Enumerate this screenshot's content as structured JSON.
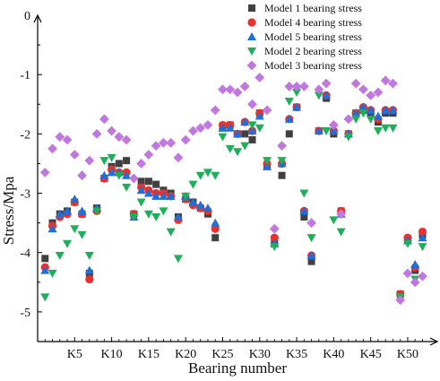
{
  "chart_data": {
    "type": "scatter",
    "xlabel": "Bearing number",
    "ylabel": "Stress/Mpa",
    "xlim": [
      0,
      54
    ],
    "ylim": [
      -5.5,
      0
    ],
    "x_ticks": [
      {
        "x": 5,
        "label": "K5"
      },
      {
        "x": 10,
        "label": "K10"
      },
      {
        "x": 15,
        "label": "K15"
      },
      {
        "x": 20,
        "label": "K20"
      },
      {
        "x": 25,
        "label": "K25"
      },
      {
        "x": 30,
        "label": "K30"
      },
      {
        "x": 35,
        "label": "K35"
      },
      {
        "x": 40,
        "label": "K40"
      },
      {
        "x": 45,
        "label": "K45"
      },
      {
        "x": 50,
        "label": "K50"
      }
    ],
    "y_ticks": [
      {
        "y": 0,
        "label": "0"
      },
      {
        "y": -1,
        "label": "-1"
      },
      {
        "y": -2,
        "label": "-2"
      },
      {
        "y": -3,
        "label": "-3"
      },
      {
        "y": -4,
        "label": "-4"
      },
      {
        "y": -5,
        "label": "-5"
      }
    ],
    "legend_position": "top-right",
    "series": [
      {
        "name": "Model 1 bearing stress",
        "marker": "square",
        "color": "#404040",
        "x": [
          1,
          2,
          3,
          4,
          5,
          6,
          7,
          8,
          9,
          10,
          11,
          12,
          13,
          14,
          15,
          16,
          17,
          18,
          19,
          20,
          21,
          22,
          23,
          24,
          25,
          26,
          27,
          28,
          29,
          30,
          31,
          32,
          33,
          34,
          35,
          36,
          37,
          38,
          39,
          40,
          41,
          42,
          43,
          44,
          45,
          46,
          47,
          48,
          49,
          50,
          51,
          52
        ],
        "y": [
          -4.1,
          -3.5,
          -3.35,
          -3.3,
          -3.15,
          -3.35,
          -4.35,
          -3.25,
          -2.75,
          -2.55,
          -2.5,
          -2.45,
          -3.35,
          -2.8,
          -2.8,
          -2.85,
          -2.95,
          -3.0,
          -3.4,
          -3.1,
          -3.15,
          -3.25,
          -3.35,
          -3.75,
          -1.9,
          -1.85,
          -2.0,
          -2.0,
          -2.1,
          -1.65,
          -2.55,
          -3.85,
          -2.7,
          -2.0,
          -1.55,
          -3.4,
          -4.15,
          -1.95,
          -1.4,
          -2.0,
          -3.3,
          -2.0,
          -1.65,
          -1.6,
          -1.65,
          -1.8,
          -1.65,
          -1.65,
          -4.7,
          -3.8,
          -4.3,
          -3.7
        ]
      },
      {
        "name": "Model 4 bearing stress",
        "marker": "circle",
        "color": "#e8312c",
        "x": [
          1,
          2,
          3,
          4,
          5,
          6,
          7,
          8,
          9,
          10,
          11,
          12,
          13,
          14,
          15,
          16,
          17,
          18,
          19,
          20,
          21,
          22,
          23,
          24,
          25,
          26,
          27,
          28,
          29,
          30,
          31,
          32,
          33,
          34,
          35,
          36,
          37,
          38,
          39,
          40,
          41,
          42,
          43,
          44,
          45,
          46,
          47,
          48,
          49,
          50,
          51,
          52
        ],
        "y": [
          -4.25,
          -3.55,
          -3.4,
          -3.35,
          -3.15,
          -3.35,
          -4.45,
          -3.3,
          -2.75,
          -2.6,
          -2.65,
          -2.65,
          -3.35,
          -2.9,
          -2.95,
          -3.0,
          -3.0,
          -3.05,
          -3.45,
          -3.1,
          -3.2,
          -3.25,
          -3.3,
          -3.6,
          -1.85,
          -1.85,
          -2.0,
          -1.8,
          -1.95,
          -1.65,
          -2.5,
          -3.75,
          -2.5,
          -1.75,
          -1.55,
          -3.3,
          -4.05,
          -1.95,
          -1.35,
          -1.95,
          -3.3,
          -2.0,
          -1.65,
          -1.55,
          -1.6,
          -1.75,
          -1.6,
          -1.6,
          -4.7,
          -3.75,
          -4.25,
          -3.65
        ]
      },
      {
        "name": "Model 5 bearing stress",
        "marker": "triangle-up",
        "color": "#1f6fd8",
        "x": [
          1,
          2,
          3,
          4,
          5,
          6,
          7,
          8,
          9,
          10,
          11,
          12,
          13,
          14,
          15,
          16,
          17,
          18,
          19,
          20,
          21,
          22,
          23,
          24,
          25,
          26,
          27,
          28,
          29,
          30,
          31,
          32,
          33,
          34,
          35,
          36,
          37,
          38,
          39,
          40,
          41,
          42,
          43,
          44,
          45,
          46,
          47,
          48,
          49,
          50,
          51,
          52
        ],
        "y": [
          -4.3,
          -3.6,
          -3.35,
          -3.3,
          -3.1,
          -3.3,
          -4.3,
          -3.25,
          -2.7,
          -2.65,
          -2.65,
          -2.7,
          -3.4,
          -2.95,
          -3.0,
          -3.05,
          -3.05,
          -3.05,
          -3.4,
          -3.05,
          -3.15,
          -3.2,
          -3.25,
          -3.5,
          -1.9,
          -1.9,
          -2.0,
          -1.8,
          -1.95,
          -1.7,
          -2.55,
          -3.85,
          -2.5,
          -1.75,
          -1.55,
          -3.3,
          -4.05,
          -1.95,
          -1.35,
          -1.95,
          -3.35,
          -2.0,
          -1.65,
          -1.55,
          -1.6,
          -1.7,
          -1.6,
          -1.6,
          -4.75,
          -3.8,
          -4.2,
          -3.75
        ]
      },
      {
        "name": "Model 2 bearing stress",
        "marker": "triangle-down",
        "color": "#1fae5a",
        "x": [
          1,
          2,
          3,
          4,
          5,
          6,
          7,
          8,
          9,
          10,
          11,
          12,
          13,
          14,
          15,
          16,
          17,
          18,
          19,
          20,
          21,
          22,
          23,
          24,
          25,
          26,
          27,
          28,
          29,
          30,
          31,
          32,
          33,
          34,
          35,
          36,
          37,
          38,
          39,
          40,
          41,
          42,
          43,
          44,
          45,
          46,
          47,
          48,
          49,
          50,
          51,
          52
        ],
        "y": [
          -4.75,
          -4.35,
          -4.05,
          -3.85,
          -3.6,
          -3.7,
          -4.05,
          -3.3,
          -2.45,
          -2.4,
          -2.7,
          -2.9,
          -3.4,
          -3.15,
          -3.35,
          -3.4,
          -3.3,
          -3.65,
          -4.1,
          -3.05,
          -2.85,
          -2.7,
          -2.65,
          -2.7,
          -2.05,
          -2.25,
          -2.3,
          -2.2,
          -1.85,
          -1.9,
          -2.45,
          -3.9,
          -2.45,
          -1.45,
          -1.3,
          -3.0,
          -3.75,
          -1.35,
          -1.95,
          -3.45,
          -3.65,
          -2.05,
          -1.75,
          -1.65,
          -1.75,
          -1.95,
          -1.9,
          -1.9,
          -4.75,
          -3.85,
          -4.45,
          -3.9
        ]
      },
      {
        "name": "Model 3 bearing stress",
        "marker": "diamond",
        "color": "#c176e0",
        "x": [
          1,
          2,
          3,
          4,
          5,
          6,
          7,
          8,
          9,
          10,
          11,
          12,
          13,
          14,
          15,
          16,
          17,
          18,
          19,
          20,
          21,
          22,
          23,
          24,
          25,
          26,
          27,
          28,
          29,
          30,
          31,
          32,
          33,
          34,
          35,
          36,
          37,
          38,
          39,
          40,
          41,
          42,
          43,
          44,
          45,
          46,
          47,
          48,
          49,
          50,
          51,
          52
        ],
        "y": [
          -2.65,
          -2.25,
          -2.05,
          -2.1,
          -2.35,
          -2.7,
          -2.45,
          -2.0,
          -1.75,
          -1.95,
          -2.05,
          -2.1,
          -2.75,
          -2.5,
          -2.35,
          -2.2,
          -2.15,
          -2.15,
          -2.4,
          -2.1,
          -1.95,
          -1.9,
          -1.85,
          -1.6,
          -1.25,
          -1.25,
          -1.3,
          -1.2,
          -1.5,
          -1.05,
          -1.6,
          -3.6,
          -2.2,
          -1.2,
          -1.2,
          -1.2,
          -3.5,
          -1.25,
          -1.15,
          -1.85,
          -3.35,
          -1.75,
          -1.15,
          -1.25,
          -1.35,
          -1.3,
          -1.1,
          -1.15,
          -4.8,
          -4.35,
          -4.5,
          -4.4
        ]
      }
    ]
  }
}
